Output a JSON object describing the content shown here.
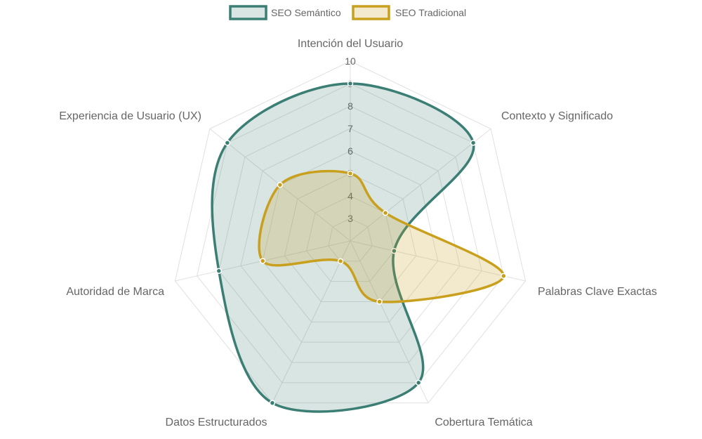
{
  "chart_data": {
    "type": "radar",
    "categories": [
      "Intención del Usuario",
      "Contexto y Significado",
      "Palabras Clave Exactas",
      "Cobertura Temática",
      "Datos Estructurados",
      "Autoridad de Marca",
      "Experiencia de Usuario (UX)"
    ],
    "r_range": [
      2,
      10
    ],
    "ticks": [
      3,
      4,
      5,
      6,
      7,
      8,
      9,
      10
    ],
    "grid": true,
    "legend_position": "top",
    "series": [
      {
        "name": "SEO Semántico",
        "values": [
          9,
          9,
          4,
          9,
          10,
          8,
          9
        ],
        "color": "#3a7e74",
        "fill": "rgba(58,126,116,0.20)"
      },
      {
        "name": "SEO Tradicional",
        "values": [
          5,
          4,
          9,
          5,
          3,
          6,
          6
        ],
        "color": "#c9a01e",
        "fill": "rgba(201,160,30,0.22)"
      }
    ]
  }
}
